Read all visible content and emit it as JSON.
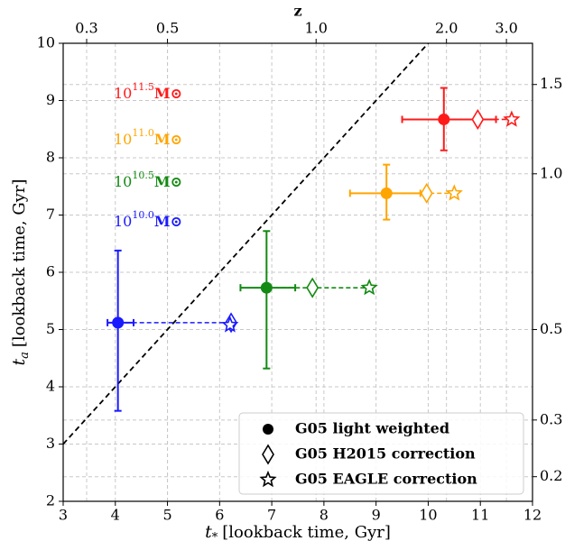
{
  "chart_data": {
    "type": "errorbar",
    "xlabel": {
      "symbol": "t",
      "sub": "*",
      "text": "[lookback time, Gyr]"
    },
    "ylabel": {
      "symbol": "t",
      "sub": "a",
      "text": "[lookback time, Gyr]"
    },
    "x2label": "z",
    "xlim": [
      3,
      12
    ],
    "xticks": [
      3,
      4,
      5,
      6,
      7,
      8,
      9,
      10,
      11,
      12
    ],
    "ylim": [
      2,
      10
    ],
    "yticks": [
      2,
      3,
      4,
      5,
      6,
      7,
      8,
      9,
      10
    ],
    "x2ticks": [
      {
        "value": 0.3,
        "label": "0.3"
      },
      {
        "value": 0.5,
        "label": "0.5"
      },
      {
        "value": 1,
        "label": "1.0"
      },
      {
        "value": 2,
        "label": "2.0"
      },
      {
        "value": 3,
        "label": "3.0"
      }
    ],
    "x2tick_positions": [
      3.45,
      5.0,
      7.85,
      10.35,
      11.5
    ],
    "y2ticks": [
      {
        "value": 1.5,
        "label": "1.5"
      },
      {
        "value": 1,
        "label": "1.0"
      },
      {
        "value": 0.5,
        "label": "0.5"
      },
      {
        "value": 0.3,
        "label": "0.3"
      },
      {
        "value": 0.2,
        "label": "0.2"
      }
    ],
    "y2tick_positions": [
      9.28,
      7.72,
      5.0,
      3.42,
      2.43
    ],
    "grid": true,
    "one_to_one_line": true,
    "legend_position": "lower right",
    "legend": [
      "G05 light weighted",
      "G05 H2015 correction",
      "G05 EAGLE correction"
    ],
    "groups": [
      {
        "base": "10",
        "exponent": "11.5",
        "unit": "M⊙",
        "color": "#ff1a1a",
        "light": {
          "x": 10.3,
          "y": 8.67,
          "x_err": [
            9.5,
            11.3
          ],
          "y_err": [
            8.13,
            9.22
          ]
        },
        "h2015": {
          "x": 10.95,
          "y": 8.67
        },
        "eagle": {
          "x": 11.6,
          "y": 8.67
        }
      },
      {
        "base": "10",
        "exponent": "11.0",
        "unit": "M⊙",
        "color": "#ffa500",
        "light": {
          "x": 9.2,
          "y": 7.38,
          "x_err": [
            8.5,
            9.85
          ],
          "y_err": [
            6.92,
            7.88
          ]
        },
        "h2015": {
          "x": 9.97,
          "y": 7.38
        },
        "eagle": {
          "x": 10.5,
          "y": 7.38
        }
      },
      {
        "base": "10",
        "exponent": "10.5",
        "unit": "M⊙",
        "color": "#138a13",
        "light": {
          "x": 6.9,
          "y": 5.73,
          "x_err": [
            6.4,
            7.45
          ],
          "y_err": [
            4.32,
            6.72
          ]
        },
        "h2015": {
          "x": 7.78,
          "y": 5.73
        },
        "eagle": {
          "x": 8.87,
          "y": 5.73
        }
      },
      {
        "base": "10",
        "exponent": "10.0",
        "unit": "M⊙",
        "color": "#1a1aff",
        "light": {
          "x": 4.05,
          "y": 5.12,
          "x_err": [
            3.85,
            4.35
          ],
          "y_err": [
            3.58,
            6.38
          ]
        },
        "h2015": {
          "x": 6.22,
          "y": 5.12
        },
        "eagle": {
          "x": 6.2,
          "y": 5.08
        }
      }
    ]
  }
}
